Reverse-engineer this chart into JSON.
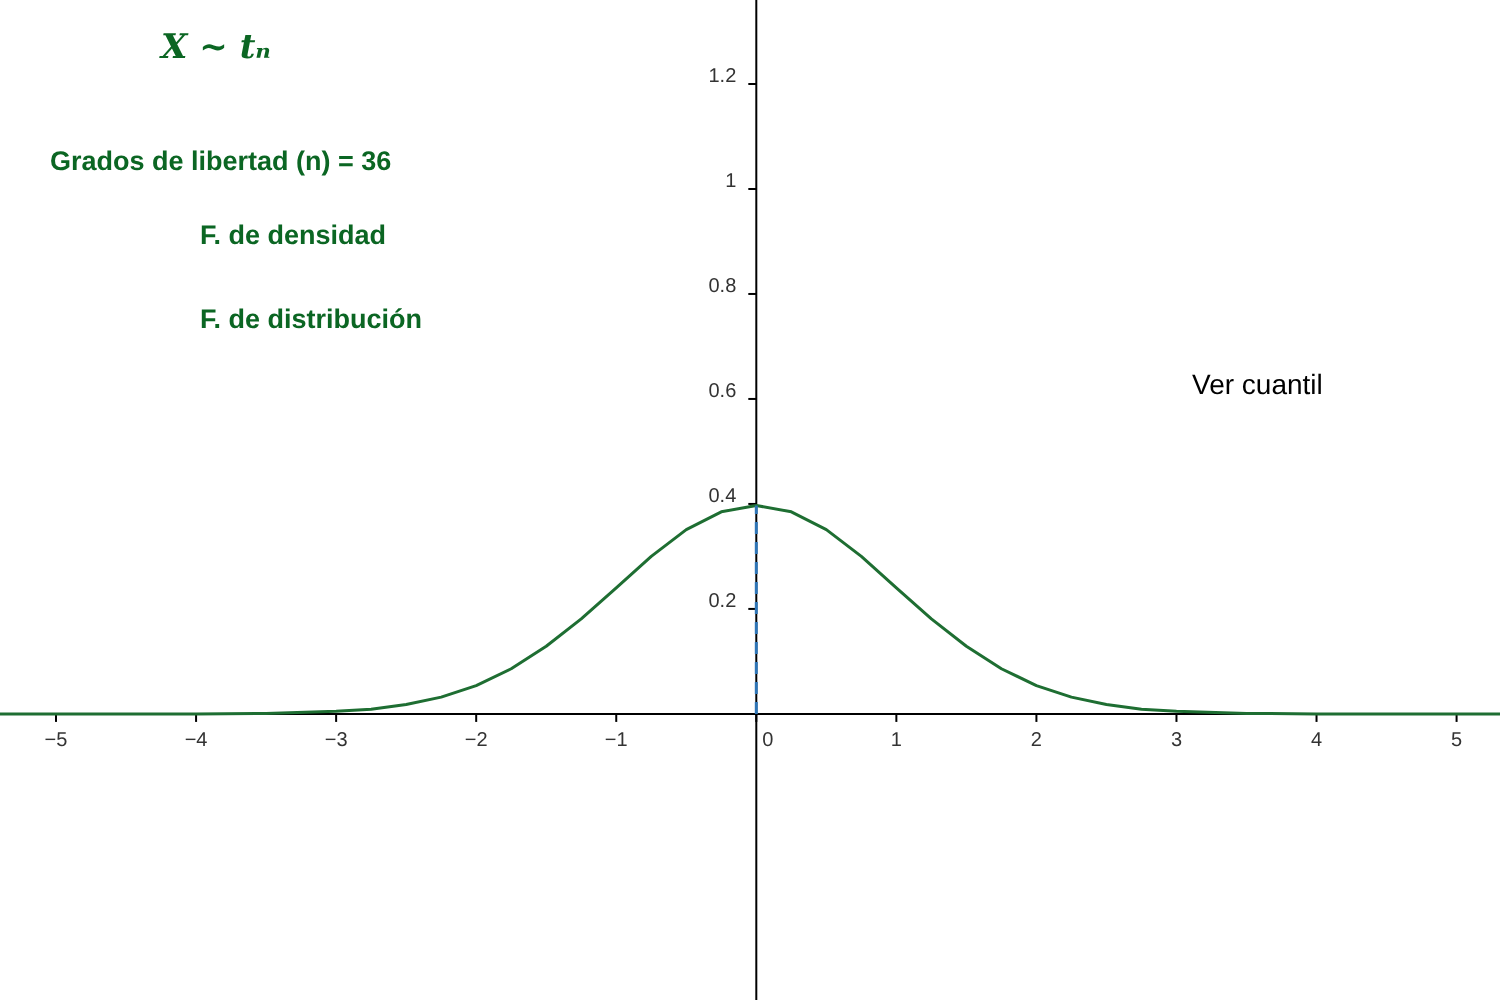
{
  "chart_data": {
    "type": "line",
    "title": "X ~ tₙ",
    "annotations": [
      "Grados de libertad (n) = 36",
      "F. de densidad",
      "F. de distribución",
      "Ver cuantil"
    ],
    "xlim": [
      -5.4,
      5.31
    ],
    "ylim": [
      -0.545,
      1.36
    ],
    "xticks": [
      {
        "value": -5,
        "label": "−5"
      },
      {
        "value": -4,
        "label": "−4"
      },
      {
        "value": -3,
        "label": "−3"
      },
      {
        "value": -2,
        "label": "−2"
      },
      {
        "value": -1,
        "label": "−1"
      },
      0,
      1,
      2,
      3,
      4,
      5
    ],
    "yticks": [
      0.2,
      0.4,
      0.6,
      0.8,
      1,
      1.2
    ],
    "grid": false,
    "marker": "none",
    "series": [
      {
        "color": "#1e6e32",
        "line_style": "solid",
        "x": [
          -5.4,
          -4,
          -3.5,
          -3,
          -2.75,
          -2.5,
          -2.25,
          -2,
          -1.75,
          -1.5,
          -1.25,
          -1,
          -0.75,
          -0.5,
          -0.25,
          0,
          0.25,
          0.5,
          0.75,
          1,
          1.25,
          1.5,
          1.75,
          2,
          2.25,
          2.5,
          2.75,
          3,
          3.5,
          4,
          5.31
        ],
        "values": [
          0,
          0,
          0.001,
          0.005,
          0.009,
          0.018,
          0.032,
          0.054,
          0.086,
          0.129,
          0.181,
          0.24,
          0.3,
          0.351,
          0.385,
          0.397,
          0.385,
          0.351,
          0.3,
          0.24,
          0.181,
          0.129,
          0.086,
          0.054,
          0.032,
          0.018,
          0.009,
          0.005,
          0.001,
          0,
          0
        ]
      },
      {
        "color": "#2e75b6",
        "line_style": "dashed",
        "x": [
          0,
          0
        ],
        "values": [
          0,
          0.397
        ]
      }
    ]
  }
}
